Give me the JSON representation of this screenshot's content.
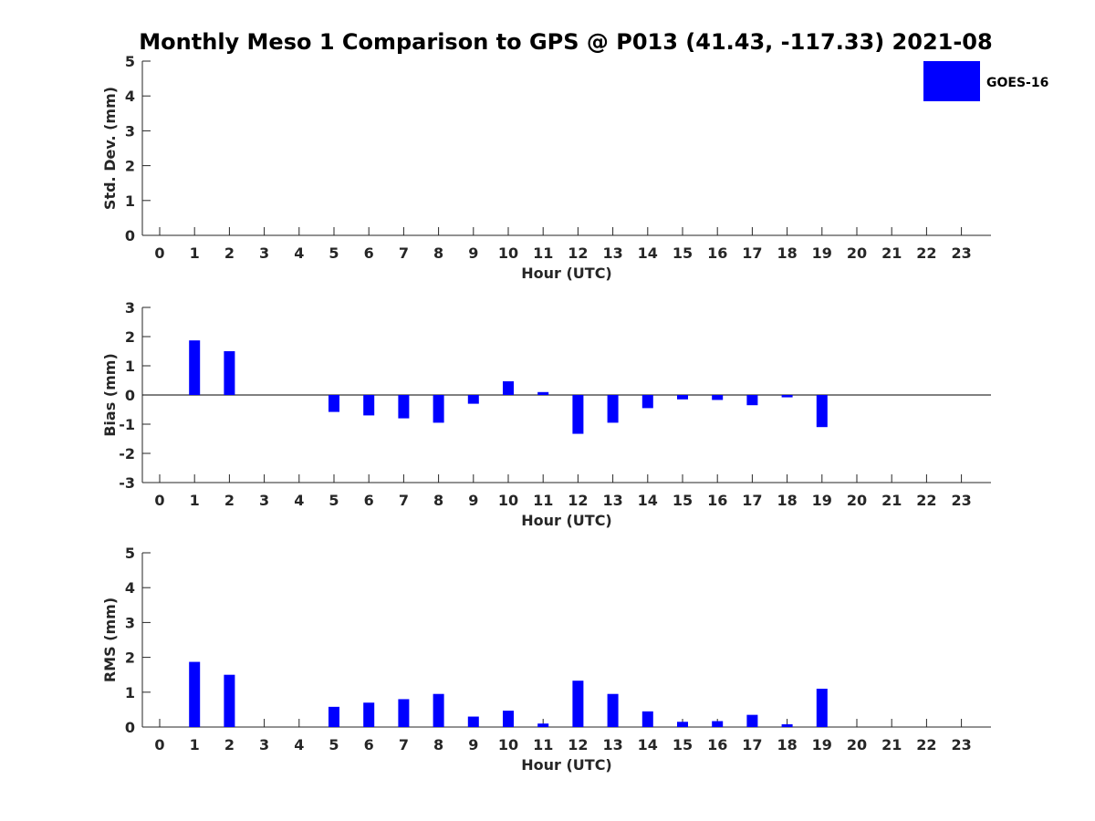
{
  "title": "Monthly Meso 1 Comparison to GPS @ P013 (41.43, -117.33) 2021-08",
  "legend": {
    "label": "GOES-16",
    "color": "#0000ff",
    "placement": "top-right"
  },
  "chart_data": [
    {
      "type": "bar",
      "ylabel": "Std. Dev. (mm)",
      "xlabel": "Hour (UTC)",
      "ylim": [
        0,
        5
      ],
      "yticks": [
        0,
        1,
        2,
        3,
        4,
        5
      ],
      "categories": [
        0,
        1,
        2,
        3,
        4,
        5,
        6,
        7,
        8,
        9,
        10,
        11,
        12,
        13,
        14,
        15,
        16,
        17,
        18,
        19,
        20,
        21,
        22,
        23
      ],
      "series": [
        {
          "name": "GOES-16",
          "color": "#0000ff",
          "values": [
            null,
            0,
            0,
            null,
            null,
            0,
            0,
            0,
            0,
            0,
            0,
            0,
            0,
            0,
            0,
            0,
            0,
            0,
            0,
            0,
            null,
            null,
            null,
            null
          ]
        }
      ]
    },
    {
      "type": "bar",
      "ylabel": "Bias (mm)",
      "xlabel": "Hour (UTC)",
      "ylim": [
        -3,
        3
      ],
      "yticks": [
        -3,
        -2,
        -1,
        0,
        1,
        2,
        3
      ],
      "zero_line": true,
      "categories": [
        0,
        1,
        2,
        3,
        4,
        5,
        6,
        7,
        8,
        9,
        10,
        11,
        12,
        13,
        14,
        15,
        16,
        17,
        18,
        19,
        20,
        21,
        22,
        23
      ],
      "series": [
        {
          "name": "GOES-16",
          "color": "#0000ff",
          "values": [
            null,
            1.87,
            1.5,
            null,
            null,
            -0.58,
            -0.7,
            -0.8,
            -0.95,
            -0.3,
            0.47,
            0.1,
            -1.33,
            -0.95,
            -0.45,
            -0.15,
            -0.17,
            -0.35,
            -0.08,
            -1.1,
            null,
            null,
            null,
            null
          ]
        }
      ]
    },
    {
      "type": "bar",
      "ylabel": "RMS (mm)",
      "xlabel": "Hour (UTC)",
      "ylim": [
        0,
        5
      ],
      "yticks": [
        0,
        1,
        2,
        3,
        4,
        5
      ],
      "categories": [
        0,
        1,
        2,
        3,
        4,
        5,
        6,
        7,
        8,
        9,
        10,
        11,
        12,
        13,
        14,
        15,
        16,
        17,
        18,
        19,
        20,
        21,
        22,
        23
      ],
      "series": [
        {
          "name": "GOES-16",
          "color": "#0000ff",
          "values": [
            null,
            1.87,
            1.5,
            null,
            null,
            0.58,
            0.7,
            0.8,
            0.95,
            0.3,
            0.47,
            0.1,
            1.33,
            0.95,
            0.45,
            0.15,
            0.17,
            0.35,
            0.08,
            1.1,
            null,
            null,
            null,
            null
          ]
        }
      ]
    }
  ]
}
